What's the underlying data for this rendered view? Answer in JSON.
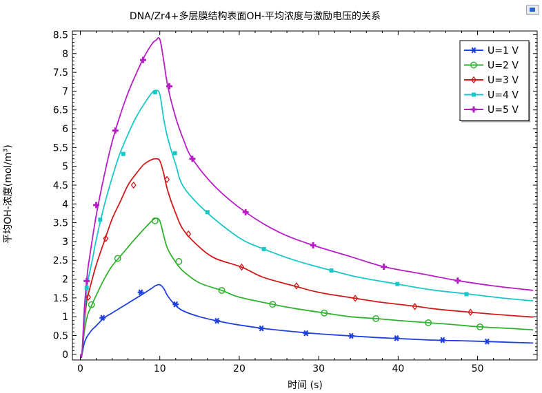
{
  "chart_data": {
    "type": "line",
    "title": "DNA/Zr4+多层膜结构表面OH-平均浓度与激励电压的关系",
    "xlabel": "时间 (s)",
    "ylabel_main": "平均OH-浓度(mol/m",
    "ylabel_sup": "3",
    "ylabel_end": ")",
    "xlim": [
      -1,
      57.5
    ],
    "ylim": [
      -0.15,
      8.6
    ],
    "x_ticks": [
      0,
      10,
      20,
      30,
      40,
      50
    ],
    "y_ticks": [
      0,
      0.5,
      1,
      1.5,
      2,
      2.5,
      3,
      3.5,
      4,
      4.5,
      5,
      5.5,
      6,
      6.5,
      7,
      7.5,
      8,
      8.5
    ],
    "grid": false,
    "legend_position": "top-right",
    "series": [
      {
        "name": "U=1 V",
        "color": "#1f3fe0",
        "marker": "asterisk",
        "x": [
          0,
          0.2,
          0.5,
          0.8,
          1,
          1.5,
          2,
          3,
          4,
          5,
          6,
          7,
          8,
          9,
          9.5,
          10,
          10.5,
          11,
          12,
          13,
          15,
          17.2,
          20,
          23,
          26,
          28.6,
          31,
          34,
          37,
          40,
          43,
          45.6,
          48,
          51.2,
          54,
          57
        ],
        "y": [
          0,
          0.0,
          0.3,
          0.45,
          0.52,
          0.66,
          0.76,
          0.97,
          1.1,
          1.23,
          1.36,
          1.49,
          1.62,
          1.76,
          1.83,
          1.85,
          1.75,
          1.55,
          1.3,
          1.15,
          1.0,
          0.89,
          0.78,
          0.69,
          0.62,
          0.57,
          0.53,
          0.49,
          0.45,
          0.42,
          0.39,
          0.37,
          0.36,
          0.34,
          0.32,
          0.3
        ],
        "marker_x": [
          2.8,
          7.6,
          12,
          17.2,
          22.8,
          28.4,
          34.1,
          39.8,
          45.6,
          51.2
        ],
        "marker_y": [
          0.97,
          1.65,
          1.33,
          0.89,
          0.69,
          0.56,
          0.49,
          0.43,
          0.38,
          0.34
        ]
      },
      {
        "name": "U=2 V",
        "color": "#2fb22f",
        "marker": "circle",
        "x": [
          0,
          0.2,
          0.5,
          0.8,
          1,
          1.5,
          2,
          3,
          4,
          5,
          6,
          7,
          8,
          9,
          9.5,
          10,
          10.5,
          11,
          12,
          13,
          15,
          17.8,
          20,
          24.2,
          27,
          30.7,
          34,
          37.2,
          40,
          43.8,
          47,
          50.3,
          54,
          57
        ],
        "y": [
          0,
          0.0,
          0.6,
          0.95,
          1.1,
          1.34,
          1.57,
          2.0,
          2.35,
          2.6,
          2.85,
          3.1,
          3.33,
          3.55,
          3.62,
          3.55,
          3.15,
          2.8,
          2.45,
          2.2,
          1.9,
          1.7,
          1.52,
          1.33,
          1.22,
          1.1,
          1.0,
          0.95,
          0.9,
          0.84,
          0.79,
          0.73,
          0.69,
          0.65
        ],
        "marker_x": [
          1.4,
          4.7,
          9.4,
          12.4,
          17.8,
          24.2,
          30.7,
          37.2,
          43.8,
          50.3
        ],
        "marker_y": [
          1.32,
          2.55,
          3.55,
          2.47,
          1.7,
          1.33,
          1.1,
          0.95,
          0.84,
          0.73
        ]
      },
      {
        "name": "U=3 V",
        "color": "#d01a1a",
        "marker": "diamond",
        "x": [
          0,
          0.2,
          0.5,
          0.8,
          1,
          1.5,
          2,
          3,
          4,
          5,
          6,
          7,
          8,
          9,
          9.5,
          10,
          10.5,
          11,
          12,
          13,
          15,
          17,
          20.3,
          23,
          26.9,
          30,
          34.6,
          38,
          42.1,
          45,
          49.1,
          53,
          57
        ],
        "y": [
          0,
          0.0,
          0.85,
          1.4,
          1.6,
          2.0,
          2.38,
          3.0,
          3.6,
          4.05,
          4.5,
          4.8,
          5.05,
          5.18,
          5.2,
          5.15,
          4.8,
          4.35,
          3.75,
          3.3,
          2.85,
          2.55,
          2.32,
          2.05,
          1.82,
          1.65,
          1.49,
          1.38,
          1.28,
          1.2,
          1.12,
          1.05,
          0.99
        ],
        "marker_x": [
          1.0,
          3.2,
          6.7,
          10.9,
          13.6,
          20.3,
          27.2,
          34.6,
          42.1,
          49.1
        ],
        "marker_y": [
          1.52,
          3.08,
          4.5,
          4.65,
          3.2,
          2.32,
          1.82,
          1.49,
          1.27,
          1.12
        ]
      },
      {
        "name": "U=4 V",
        "color": "#18c8c8",
        "marker": "square",
        "x": [
          0,
          0.2,
          0.5,
          0.8,
          1,
          1.5,
          2,
          3,
          4,
          5,
          6,
          7,
          8,
          9,
          9.5,
          10,
          10.5,
          11,
          12,
          13,
          15.9,
          20,
          23.1,
          27,
          31.6,
          35,
          39.9,
          44,
          48.6,
          53,
          57
        ],
        "y": [
          0,
          0.0,
          1.0,
          1.65,
          2.0,
          2.5,
          3.05,
          3.95,
          4.7,
          5.35,
          5.85,
          6.3,
          6.65,
          6.95,
          7.02,
          6.92,
          6.25,
          5.75,
          5.05,
          4.45,
          3.78,
          3.1,
          2.8,
          2.5,
          2.23,
          2.05,
          1.87,
          1.72,
          1.61,
          1.5,
          1.42
        ],
        "marker_x": [
          0.8,
          2.5,
          5.4,
          9.4,
          11.9,
          16,
          23.1,
          31.6,
          39.9,
          48.6
        ],
        "marker_y": [
          1.77,
          3.58,
          5.33,
          6.97,
          5.35,
          3.78,
          2.8,
          2.23,
          1.87,
          1.6
        ]
      },
      {
        "name": "U=5 V",
        "color": "#b81cc8",
        "marker": "plus",
        "x": [
          0,
          0.2,
          0.5,
          0.8,
          1,
          1.5,
          2,
          3,
          4,
          5,
          6,
          7,
          8,
          9,
          9.5,
          10,
          10.5,
          11,
          12,
          13,
          14.1,
          17,
          20.8,
          25,
          29.3,
          34,
          38.2,
          43,
          47.5,
          52,
          57
        ],
        "y": [
          0,
          0.0,
          1.2,
          1.95,
          2.35,
          3.05,
          3.7,
          4.75,
          5.65,
          6.35,
          6.95,
          7.45,
          7.9,
          8.25,
          8.35,
          8.38,
          7.8,
          7.13,
          6.3,
          5.7,
          5.2,
          4.45,
          3.78,
          3.25,
          2.9,
          2.6,
          2.33,
          2.14,
          1.96,
          1.82,
          1.7
        ],
        "marker_x": [
          0.8,
          2.0,
          4.4,
          7.9,
          11.2,
          14.1,
          20.8,
          29.3,
          38.2,
          47.5
        ],
        "marker_y": [
          1.95,
          3.97,
          5.95,
          7.83,
          7.13,
          5.2,
          3.78,
          2.9,
          2.33,
          1.96
        ]
      }
    ]
  }
}
